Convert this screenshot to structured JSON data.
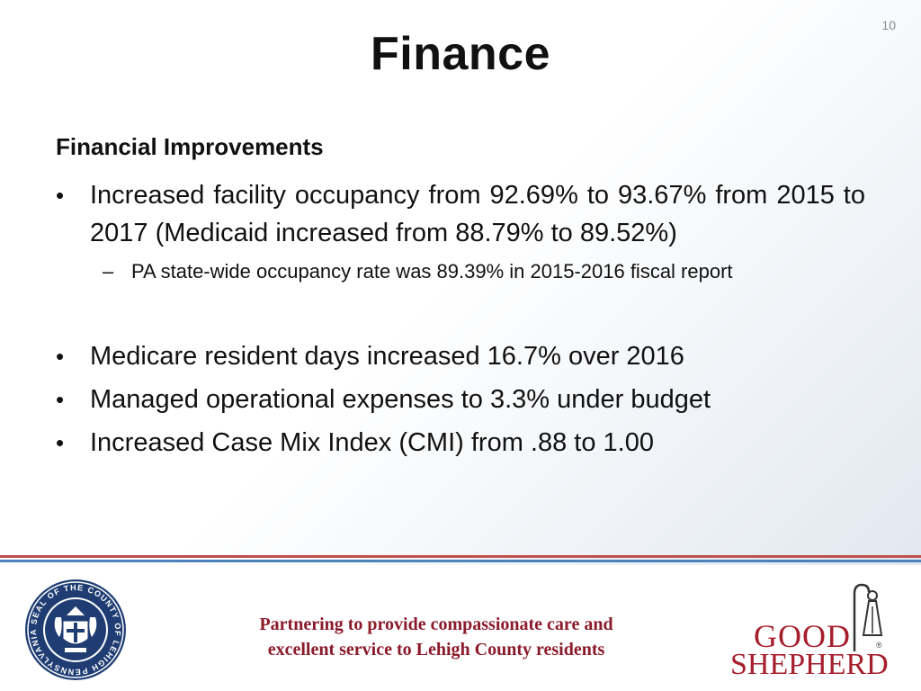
{
  "slide": {
    "number": "10",
    "title": "Finance",
    "subtitle": "Financial Improvements"
  },
  "bullets": [
    {
      "marker": "•",
      "text": "Increased facility occupancy from 92.69% to 93.67% from 2015 to 2017 (Medicaid increased from 88.79% to 89.52%)",
      "sub": {
        "marker": "–",
        "text": "PA state-wide occupancy rate was 89.39% in 2015-2016 fiscal report"
      }
    },
    {
      "marker": "•",
      "text": "Medicare resident days increased 16.7% over 2016"
    },
    {
      "marker": "•",
      "text": "Managed operational expenses to 3.3% under budget"
    },
    {
      "marker": "•",
      "text": "Increased Case Mix Index (CMI) from .88 to 1.00"
    }
  ],
  "footer": {
    "tagline_line1": "Partnering to provide compassionate care and",
    "tagline_line2": "excellent service to Lehigh County residents",
    "seal_text": "SEAL OF THE COUNTY OF LEHIGH PENNSYLVANIA",
    "logo_line1": "GOOD",
    "logo_line2": "SHEPHERD",
    "logo_reg": "®"
  },
  "colors": {
    "accent_red": "#c0504d",
    "accent_blue": "#4f81bd",
    "brand_maroon": "#8b1a2b",
    "logo_red": "#a51f2d"
  }
}
